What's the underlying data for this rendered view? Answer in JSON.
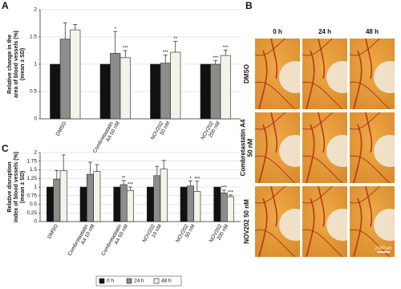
{
  "chart_data": [
    {
      "type": "bar",
      "panel": "A",
      "ylabel": [
        "Relative change in the",
        "area of blood vessels (%)",
        "(mean ± SD)"
      ],
      "categories": [
        [
          "DMSO"
        ],
        [
          "Combretastatin",
          "A4 50 nM"
        ],
        [
          "NOV202",
          "50 nM"
        ],
        [
          "NOV202",
          "200 nM"
        ]
      ],
      "series": [
        {
          "color": "#111111",
          "values": [
            1,
            1,
            1,
            1
          ],
          "errors": [
            0,
            0,
            0,
            0
          ],
          "annotations": [
            null,
            null,
            null,
            null
          ]
        },
        {
          "color": "#8c8c8c",
          "values": [
            1.46,
            1.2,
            1.02,
            1.0
          ],
          "errors": [
            0.3,
            0.4,
            0.15,
            0.07
          ],
          "annotations": [
            null,
            "*",
            "***",
            "***"
          ]
        },
        {
          "color": "#f3f3e8",
          "values": [
            1.63,
            1.12,
            1.22,
            1.16
          ],
          "errors": [
            0.1,
            0.13,
            0.2,
            0.1
          ],
          "annotations": [
            null,
            "***",
            "**",
            "***"
          ]
        }
      ],
      "ylim": [
        0,
        2
      ],
      "yticks": [
        0,
        0.5,
        1,
        1.5,
        2
      ],
      "grid": true
    },
    {
      "type": "bar",
      "panel": "C",
      "ylabel": [
        "Relative disruption",
        "index of blood vessels (%)",
        "(mean ± SD)"
      ],
      "categories": [
        [
          "DMSO"
        ],
        [
          "Combretastatin",
          "A4 10 nM"
        ],
        [
          "Combretastatin",
          "A4 50 nM"
        ],
        [
          "NOV202",
          "10 nM"
        ],
        [
          "NOV202",
          "50 nM"
        ],
        [
          "NOV202",
          "200 nM"
        ]
      ],
      "series": [
        {
          "name": "0 h",
          "color": "#111111",
          "values": [
            1,
            1,
            1,
            1,
            1,
            1
          ],
          "errors": [
            0,
            0,
            0,
            0,
            0,
            0
          ],
          "annotations": [
            null,
            null,
            null,
            null,
            null,
            null
          ]
        },
        {
          "name": "24 h",
          "color": "#8c8c8c",
          "values": [
            1.23,
            1.37,
            1.07,
            1.33,
            1.03,
            0.83
          ],
          "errors": [
            0.25,
            0.35,
            0.12,
            0.27,
            0.15,
            0.08
          ],
          "annotations": [
            null,
            null,
            "**",
            null,
            "*",
            "***"
          ]
        },
        {
          "name": "48 h",
          "color": "#f3f3e8",
          "values": [
            1.48,
            1.45,
            0.9,
            1.52,
            0.87,
            0.72
          ],
          "errors": [
            0.45,
            0.2,
            0.1,
            0.25,
            0.3,
            0.05
          ],
          "annotations": [
            null,
            null,
            "***",
            null,
            "***",
            "***"
          ]
        }
      ],
      "ylim": [
        0,
        2
      ],
      "yticks": [
        0,
        0.25,
        0.5,
        0.75,
        1,
        1.25,
        1.5,
        1.75,
        2
      ],
      "grid": true,
      "legend": "bottom"
    }
  ],
  "image_grid": {
    "panel": "B",
    "columns": [
      "0 h",
      "24 h",
      "48 h"
    ],
    "rows": [
      [
        "DMSO"
      ],
      [
        "Combretastatin A4",
        "50 nM"
      ],
      [
        "NOV202 50 nM"
      ]
    ],
    "scale_bar": "2,000 μm"
  }
}
